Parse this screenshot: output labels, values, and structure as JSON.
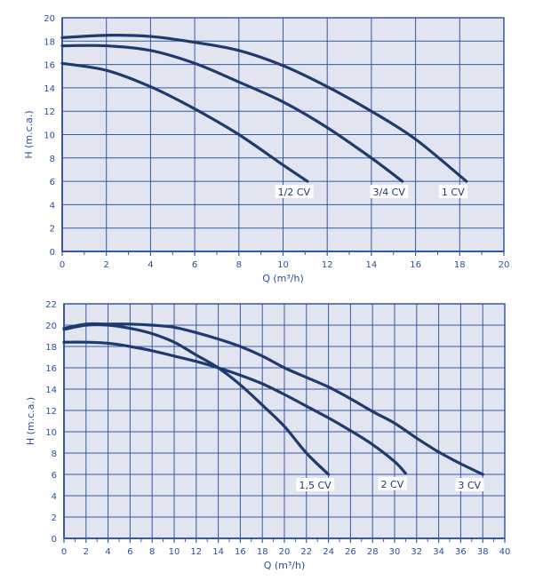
{
  "colors": {
    "plot_bg": "#e2e4ef",
    "grid": "#3559a6",
    "curve": "#1f3a6e",
    "text": "#2a4f9a",
    "label_bg": "#ffffff"
  },
  "chart_data": [
    {
      "type": "line",
      "xlabel": "Q (m³/h)",
      "ylabel": "H (m.c.a.)",
      "xlim": [
        0,
        20
      ],
      "ylim": [
        0,
        20
      ],
      "xticks": [
        0,
        2,
        4,
        6,
        8,
        10,
        12,
        14,
        16,
        18,
        20
      ],
      "yticks": [
        0,
        2,
        4,
        6,
        8,
        10,
        12,
        14,
        16,
        18,
        20
      ],
      "grid": true,
      "series": [
        {
          "name": "1/2 CV",
          "x": [
            0,
            2,
            4,
            6,
            8,
            10,
            11.1
          ],
          "y": [
            16.1,
            15.5,
            14.1,
            12.2,
            10.0,
            7.4,
            6.0
          ]
        },
        {
          "name": "3/4 CV",
          "x": [
            0,
            2,
            4,
            6,
            8,
            10,
            12,
            14,
            15.4
          ],
          "y": [
            17.6,
            17.6,
            17.2,
            16.1,
            14.5,
            12.8,
            10.6,
            8.0,
            6.0
          ]
        },
        {
          "name": "1 CV",
          "x": [
            0,
            2,
            4,
            6,
            8,
            10,
            12,
            14,
            16,
            18.3
          ],
          "y": [
            18.3,
            18.5,
            18.4,
            17.9,
            17.2,
            15.9,
            14.1,
            12.0,
            9.6,
            6.0
          ]
        }
      ]
    },
    {
      "type": "line",
      "xlabel": "Q (m³/h)",
      "ylabel": "H (m.c.a.)",
      "xlim": [
        0,
        40
      ],
      "ylim": [
        0,
        22
      ],
      "xticks": [
        0,
        2,
        4,
        6,
        8,
        10,
        12,
        14,
        16,
        18,
        20,
        22,
        24,
        26,
        28,
        30,
        32,
        34,
        36,
        38,
        40
      ],
      "yticks": [
        0,
        2,
        4,
        6,
        8,
        10,
        12,
        14,
        16,
        18,
        20,
        22
      ],
      "grid": true,
      "series": [
        {
          "name": "1,5 CV",
          "x": [
            0,
            2,
            4,
            6,
            8,
            10,
            12,
            14,
            16,
            18,
            20,
            22,
            24
          ],
          "y": [
            19.6,
            20.0,
            20.0,
            19.7,
            19.2,
            18.4,
            17.2,
            16.0,
            14.4,
            12.5,
            10.5,
            8.0,
            6.0
          ]
        },
        {
          "name": "2 CV",
          "x": [
            0,
            2,
            4,
            6,
            8,
            10,
            12,
            14,
            16,
            18,
            20,
            22,
            24,
            26,
            28,
            30,
            31
          ],
          "y": [
            18.4,
            18.4,
            18.3,
            18.0,
            17.6,
            17.1,
            16.6,
            16.0,
            15.3,
            14.5,
            13.5,
            12.4,
            11.3,
            10.1,
            8.8,
            7.2,
            6.1
          ]
        },
        {
          "name": "3 CV",
          "x": [
            0,
            2,
            4,
            6,
            8,
            10,
            12,
            14,
            16,
            18,
            20,
            22,
            24,
            26,
            28,
            30,
            32,
            34,
            36,
            38
          ],
          "y": [
            19.7,
            20.1,
            20.1,
            20.1,
            20.0,
            19.8,
            19.3,
            18.7,
            18.0,
            17.1,
            16.0,
            15.1,
            14.2,
            13.1,
            11.9,
            10.8,
            9.4,
            8.1,
            7.0,
            6.0
          ]
        }
      ]
    }
  ]
}
